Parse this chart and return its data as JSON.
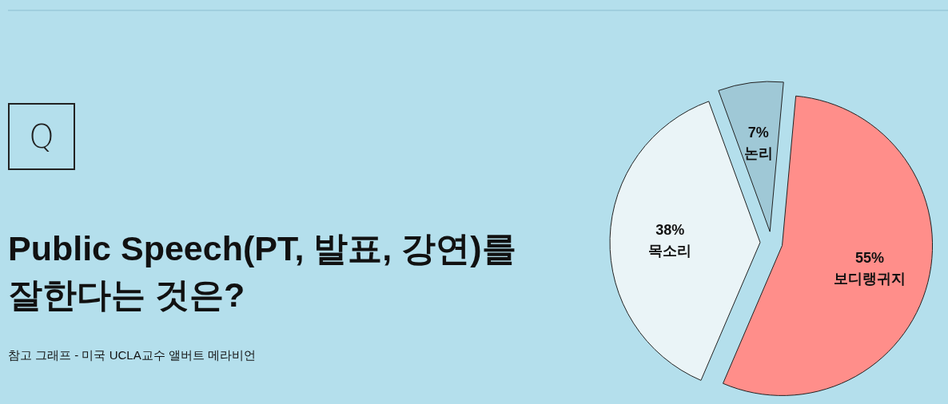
{
  "chart_data": {
    "type": "pie",
    "title": "Public Speech(PT, 발표, 강연)를 잘한다는 것은?",
    "categories": [
      "논리",
      "보디랭귀지",
      "목소리"
    ],
    "values": [
      7,
      55,
      38
    ],
    "colors": [
      "#9fc8d6",
      "#ff8e8a",
      "#eaf4f7"
    ],
    "value_labels": [
      "7%",
      "55%",
      "38%"
    ],
    "annotations": [
      "Q",
      "참고 그래프 - 미국 UCLA교수 앨버트 메라비언"
    ]
  }
}
